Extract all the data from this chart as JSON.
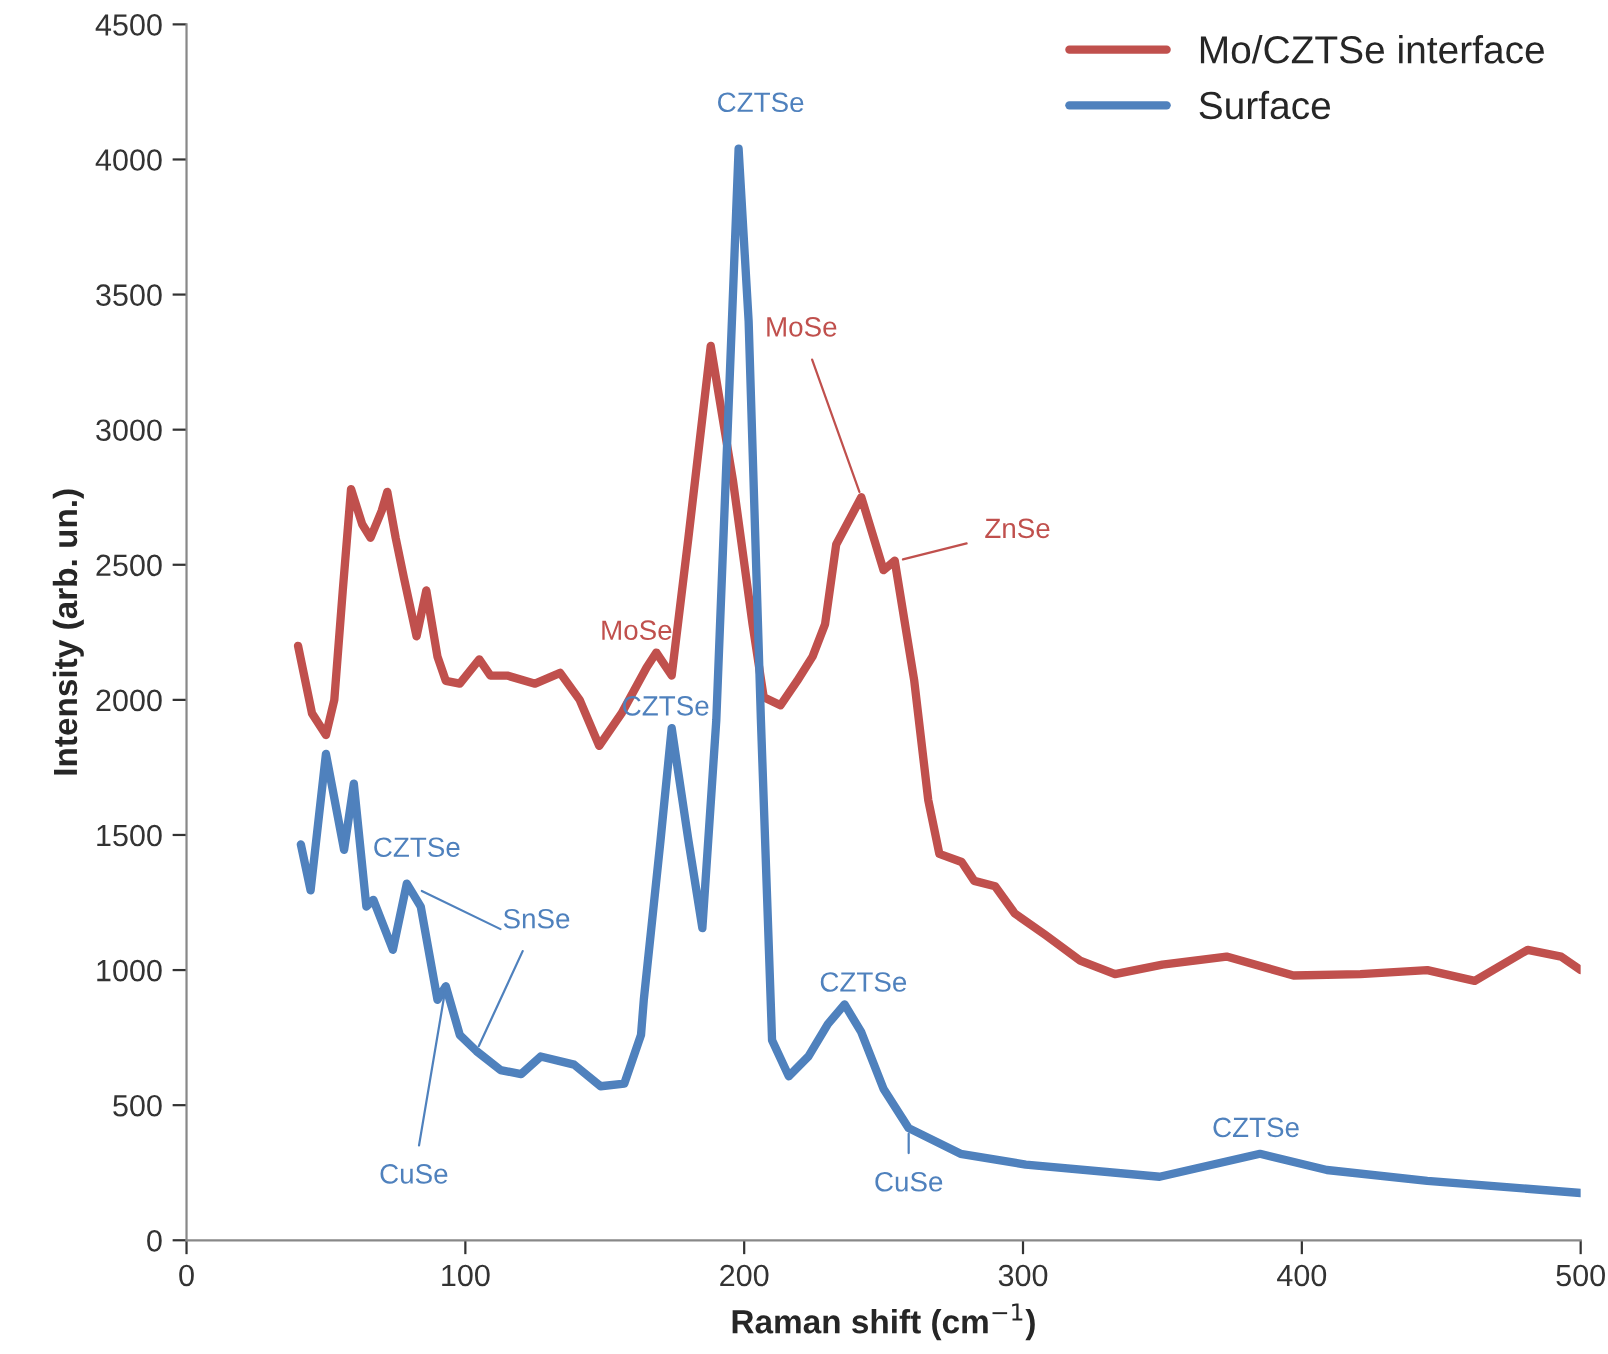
{
  "chart_data": {
    "type": "line",
    "xlabel": "Raman shift (cm$^{−1}$)",
    "ylabel": "Intensity (arb. un.)",
    "xlim": [
      0,
      500
    ],
    "xticks": [
      0,
      100,
      200,
      300,
      400,
      500
    ],
    "ylim": [
      0,
      4500
    ],
    "yticks": [
      0,
      500,
      1000,
      1500,
      2000,
      2500,
      3000,
      3500,
      4000,
      4500
    ],
    "grid": false,
    "legend": "top right",
    "marker": "none",
    "line_style": "solid",
    "series": [
      {
        "name": "Mo/CZTSe interface",
        "color": "#c0504d",
        "x": [
          40,
          45,
          50,
          53,
          56,
          59,
          63,
          66,
          70,
          72,
          75,
          78,
          82.5,
          86,
          90,
          93,
          98,
          105,
          109,
          115,
          125,
          134,
          141,
          148,
          156,
          165,
          168.5,
          174,
          180,
          188,
          196,
          203,
          207,
          213,
          219,
          224.5,
          229,
          233,
          242,
          250,
          254,
          261,
          266,
          270,
          278,
          282.5,
          290,
          297,
          308,
          320.5,
          333,
          350,
          373,
          397,
          421,
          445,
          462,
          481,
          493,
          500
        ],
        "values": [
          2200,
          1950,
          1870,
          2000,
          2400,
          2780,
          2650,
          2600,
          2700,
          2770,
          2600,
          2450,
          2235,
          2405,
          2160,
          2070,
          2060,
          2150,
          2090,
          2090,
          2060,
          2100,
          2000,
          1830,
          1950,
          2120,
          2175,
          2090,
          2600,
          3310,
          2810,
          2280,
          2010,
          1980,
          2070,
          2160,
          2280,
          2575,
          2750,
          2480,
          2515,
          2070,
          1630,
          1430,
          1400,
          1330,
          1310,
          1210,
          1130,
          1035,
          985,
          1020,
          1050,
          980,
          985,
          1000,
          960,
          1075,
          1050,
          1000
        ]
      },
      {
        "name": "Surface",
        "color": "#4f81bd",
        "x": [
          41,
          44.5,
          50,
          56.5,
          60,
          64.5,
          67,
          74,
          79,
          84,
          90,
          93,
          98,
          104,
          112.6,
          120,
          127,
          139,
          148.5,
          157,
          163,
          164,
          170,
          174,
          180,
          185,
          190,
          194.5,
          198,
          201.6,
          206,
          210,
          216,
          223,
          230,
          236,
          242,
          250,
          259,
          277.6,
          301,
          349,
          385,
          409,
          445,
          500
        ],
        "values": [
          1465,
          1295,
          1800,
          1445,
          1690,
          1235,
          1260,
          1075,
          1320,
          1235,
          890,
          940,
          760,
          700,
          630,
          615,
          680,
          650,
          570,
          580,
          760,
          890,
          1480,
          1895,
          1480,
          1155,
          1925,
          3110,
          4040,
          3400,
          1925,
          740,
          607,
          680,
          800,
          873,
          770,
          560,
          415,
          320,
          280,
          235,
          320,
          260,
          220,
          175
        ]
      }
    ],
    "annotations": [
      {
        "text": "CZTSe",
        "x": 198,
        "y": 4040
      },
      {
        "text": "MoSe",
        "x": 168.5,
        "y": 2175
      },
      {
        "text": "CZTSe",
        "x": 174,
        "y": 1895
      },
      {
        "text": "MoSe",
        "x": 242,
        "y": 2750
      },
      {
        "text": "ZnSe",
        "x": 255,
        "y": 2515
      },
      {
        "text": "CZTSe",
        "x": 79,
        "y": 1320
      },
      {
        "text": "SnSe",
        "x": 104,
        "y": 700
      },
      {
        "text": "CuSe",
        "x": 93,
        "y": 940
      },
      {
        "text": "CZTSe",
        "x": 237,
        "y": 873
      },
      {
        "text": "CuSe",
        "x": 259,
        "y": 415
      },
      {
        "text": "CZTSe",
        "x": 385,
        "y": 320
      }
    ]
  }
}
